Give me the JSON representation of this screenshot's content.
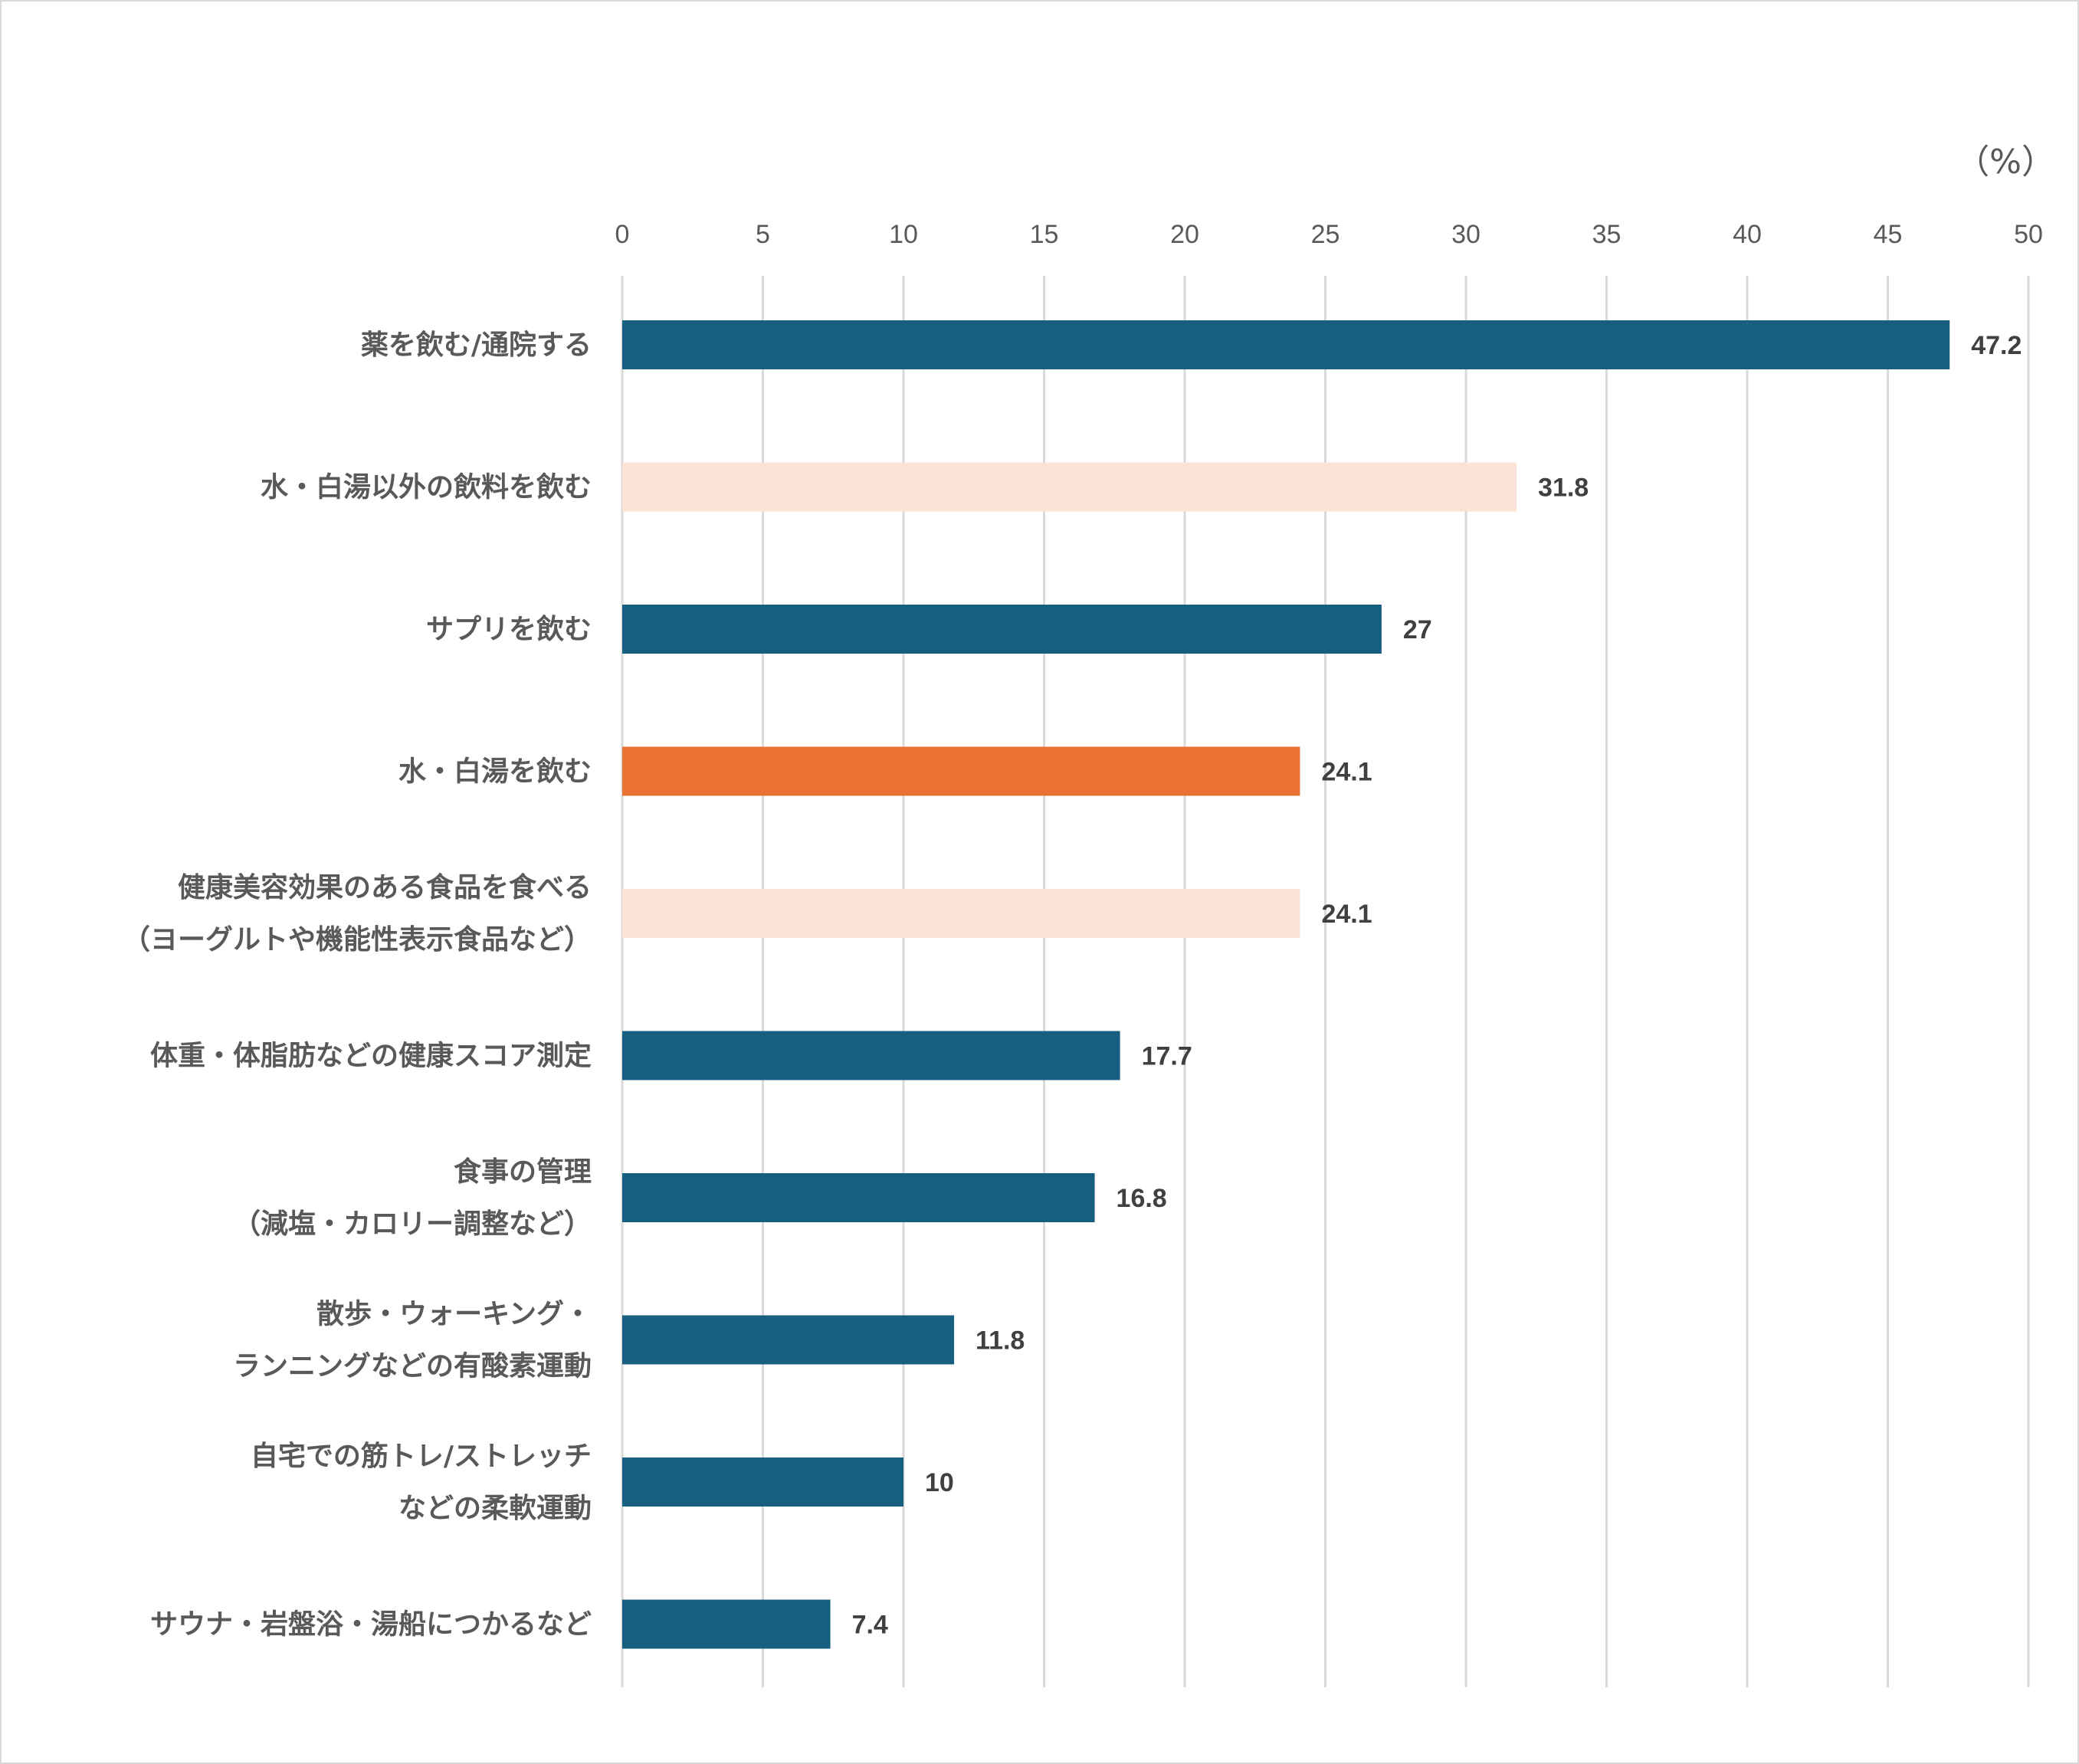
{
  "chart_data": {
    "type": "bar",
    "orientation": "horizontal",
    "unit": "（%）",
    "xlim": [
      0,
      50
    ],
    "ticks": [
      0,
      5,
      10,
      15,
      20,
      25,
      30,
      35,
      40,
      45,
      50
    ],
    "grid": true,
    "categories": [
      [
        "薬を飲む/通院する"
      ],
      [
        "水・白湯以外の飲料を飲む"
      ],
      [
        "サプリを飲む"
      ],
      [
        "水・白湯を飲む"
      ],
      [
        "健康美容効果のある食品を食べる",
        "（ヨーグルトや機能性表示食品など）"
      ],
      [
        "体重・体脂肪などの健康スコア測定"
      ],
      [
        "食事の管理",
        "（減塩・カロリー調整など）"
      ],
      [
        "散歩・ウォーキング・",
        "ランニングなどの有酸素運動"
      ],
      [
        "自宅での筋トレ/ストレッチ",
        "などの柔軟運動"
      ],
      [
        "サウナ・岩盤浴・湯船につかるなど"
      ]
    ],
    "values": [
      47.2,
      31.8,
      27,
      24.1,
      24.1,
      17.7,
      16.8,
      11.8,
      10,
      7.4
    ],
    "value_labels": [
      "47.2",
      "31.8",
      "27",
      "24.1",
      "24.1",
      "17.7",
      "16.8",
      "11.8",
      "10",
      "7.4"
    ],
    "bar_colors": [
      "#175f81",
      "#fde2d7",
      "#175f81",
      "#e97132",
      "#fde2d7",
      "#175f81",
      "#175f81",
      "#175f81",
      "#175f81",
      "#175f81"
    ]
  }
}
